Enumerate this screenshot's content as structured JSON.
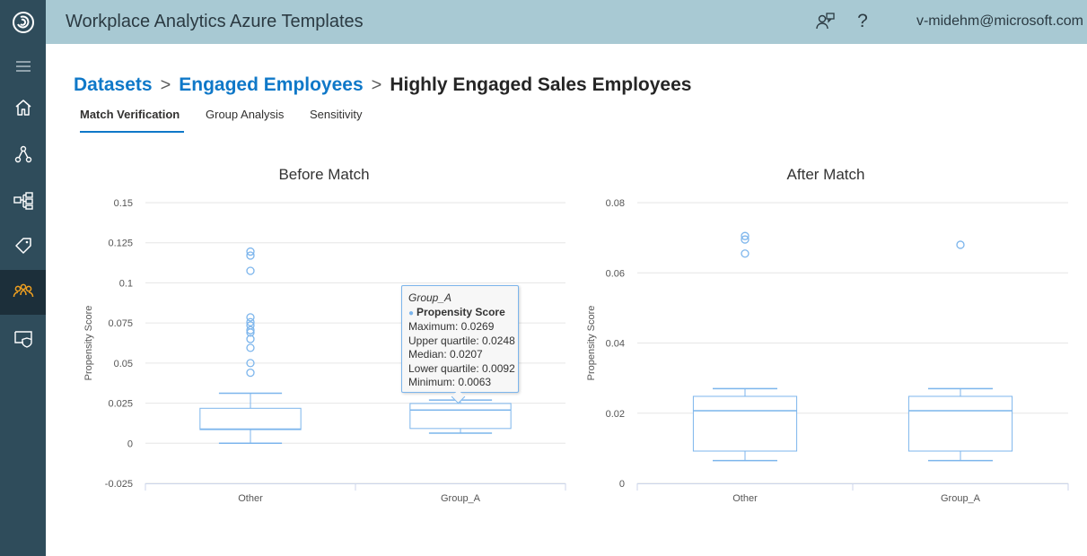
{
  "header": {
    "app_title": "Workplace Analytics Azure Templates",
    "user_email": "v-midehm@microsoft.com",
    "icons": [
      "feedback-icon",
      "help-icon"
    ],
    "help_glyph": "?"
  },
  "rail": {
    "items": [
      "menu-icon",
      "home-icon",
      "network-icon",
      "hierarchy-icon",
      "tag-icon",
      "group-icon",
      "shield-icon"
    ],
    "active_index": 5
  },
  "breadcrumb": {
    "items": [
      "Datasets",
      "Engaged Employees"
    ],
    "current": "Highly Engaged Sales Employees",
    "separator": ">"
  },
  "tabs": [
    {
      "label": "Match Verification",
      "active": true
    },
    {
      "label": "Group Analysis",
      "active": false
    },
    {
      "label": "Sensitivity",
      "active": false
    }
  ],
  "colors": {
    "header": "#a8c9d3",
    "rail": "#2f4c5b",
    "link": "#0f78c8",
    "box": "#7cb5ec"
  },
  "chart_data": [
    {
      "type": "boxplot",
      "title": "Before Match",
      "ylabel": "Propensity Score",
      "ylim": [
        -0.025,
        0.15
      ],
      "yticks": [
        -0.025,
        0,
        0.025,
        0.05,
        0.075,
        0.1,
        0.125,
        0.15
      ],
      "ytick_labels": [
        "-0.025",
        "0",
        "0.025",
        "0.05",
        "0.075",
        "0.1",
        "0.125",
        "0.15"
      ],
      "categories": [
        "Other",
        "Group_A"
      ],
      "boxes": [
        {
          "category": "Other",
          "min": 0.0,
          "q1": 0.0085,
          "median": 0.0088,
          "q3": 0.0218,
          "max": 0.0312,
          "outliers": [
            0.1195,
            0.117,
            0.1075,
            0.0785,
            0.0755,
            0.0735,
            0.0705,
            0.069,
            0.065,
            0.0595,
            0.05,
            0.044
          ]
        },
        {
          "category": "Group_A",
          "min": 0.0063,
          "q1": 0.0092,
          "median": 0.0207,
          "q3": 0.0248,
          "max": 0.0269,
          "outliers": []
        }
      ],
      "tooltip": {
        "category": "Group_A",
        "series": "Propensity Score",
        "lines": [
          "Maximum: 0.0269",
          "Upper quartile: 0.0248",
          "Median: 0.0207",
          "Lower quartile: 0.0092",
          "Minimum: 0.0063"
        ]
      }
    },
    {
      "type": "boxplot",
      "title": "After Match",
      "ylabel": "Propensity Score",
      "ylim": [
        0,
        0.08
      ],
      "yticks": [
        0,
        0.02,
        0.04,
        0.06,
        0.08
      ],
      "ytick_labels": [
        "0",
        "0.02",
        "0.04",
        "0.06",
        "0.08"
      ],
      "categories": [
        "Other",
        "Group_A"
      ],
      "boxes": [
        {
          "category": "Other",
          "min": 0.0065,
          "q1": 0.0092,
          "median": 0.0207,
          "q3": 0.0248,
          "max": 0.027,
          "outliers": [
            0.0705,
            0.0695,
            0.0655
          ]
        },
        {
          "category": "Group_A",
          "min": 0.0065,
          "q1": 0.0092,
          "median": 0.0207,
          "q3": 0.0248,
          "max": 0.027,
          "outliers": [
            0.068
          ]
        }
      ]
    }
  ]
}
